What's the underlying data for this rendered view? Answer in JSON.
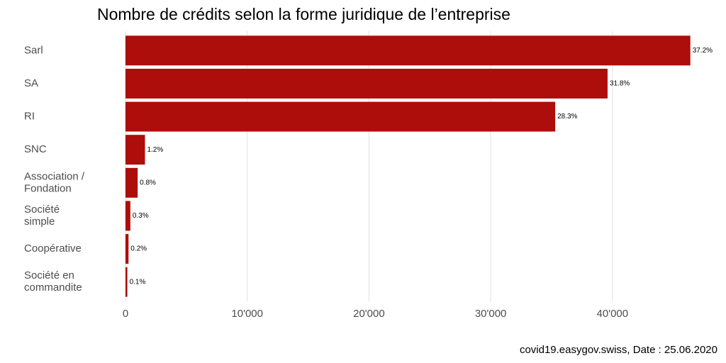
{
  "chart_data": {
    "type": "hbar",
    "title": "Nombre de crédits selon la forme juridique de l’entreprise",
    "caption": "covid19.easygov.swiss, Date : 25.06.2020",
    "categories": [
      "Sarl",
      "SA",
      "RI",
      "SNC",
      "Association /\nFondation",
      "Société\nsimple",
      "Coopérative",
      "Société en\ncommandite"
    ],
    "values": [
      46400,
      39600,
      35300,
      1600,
      1000,
      400,
      250,
      150
    ],
    "value_labels": [
      "37.2%",
      "31.8%",
      "28.3%",
      "1.2%",
      "0.8%",
      "0.3%",
      "0.2%",
      "0.1%"
    ],
    "color": "#ad0d0b",
    "xlim": [
      0,
      47000
    ],
    "xticks": [
      0,
      {
        "value": 10000,
        "label": "10'000"
      },
      {
        "value": 20000,
        "label": "20'000"
      },
      {
        "value": 30000,
        "label": "30'000"
      },
      {
        "value": 40000,
        "label": "40'000"
      }
    ],
    "grid": true
  }
}
